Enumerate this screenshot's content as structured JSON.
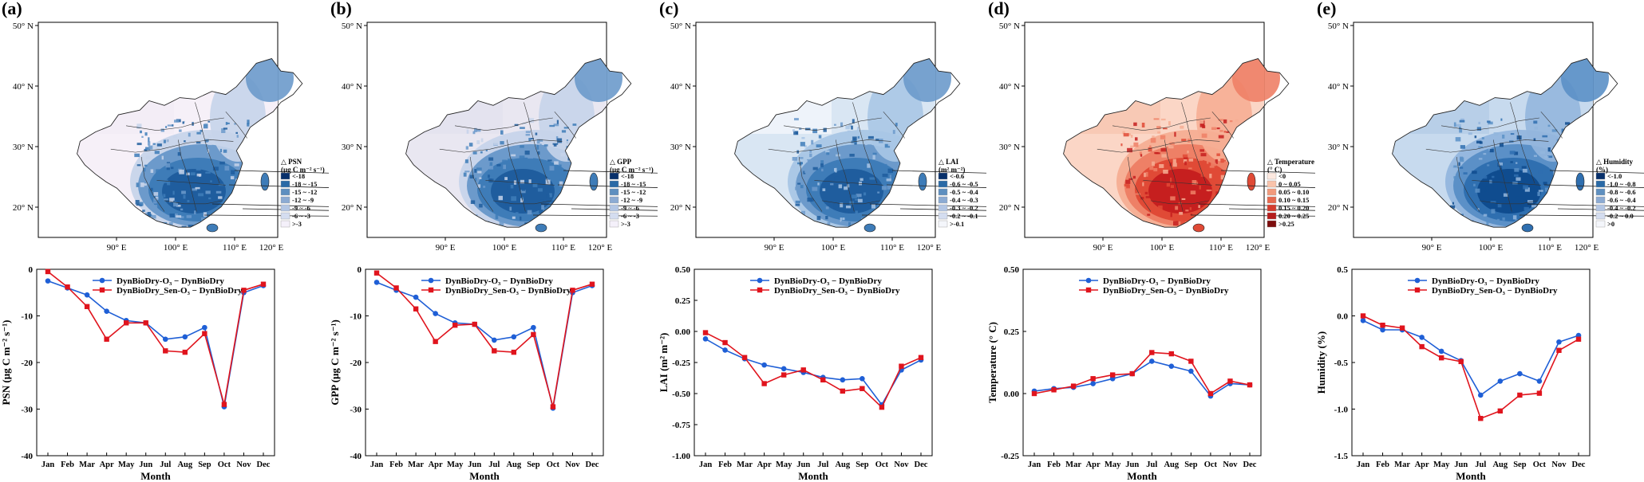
{
  "months": [
    "Jan",
    "Feb",
    "Mar",
    "Apr",
    "May",
    "Jun",
    "Jul",
    "Aug",
    "Sep",
    "Oct",
    "Nov",
    "Dec"
  ],
  "month_axis_label": "Month",
  "map_lat_ticks": [
    "50° N",
    "40° N",
    "30° N",
    "20° N"
  ],
  "map_lon_ticks": [
    "90° E",
    "100° E",
    "110° E",
    "120° E"
  ],
  "colors": {
    "o3": "#1f5fd6",
    "sen": "#e0141d"
  },
  "panels": [
    {
      "label": "(a)",
      "legend_title": [
        "△ PSN",
        "(μg C m⁻² s⁻¹)"
      ],
      "legend_items": [
        "<-18",
        "-18 ~ -15",
        "-15 ~ -12",
        "-12 ~ -9",
        "-9 ~ -6",
        "-6 ~ -3",
        ">-3"
      ],
      "legend_colors": [
        "#08306b",
        "#2a6aa6",
        "#5e8fc0",
        "#8cabd3",
        "#b3c6e4",
        "#d4ddf0",
        "#f4f0fa"
      ],
      "map_palette": [
        "#f6f0f8",
        "#f3edf6",
        "#1f5d9e",
        "#3e7cb8",
        "#6c9acb",
        "#c7d4ea"
      ],
      "chart_data": {
        "type": "line",
        "categories": [
          "Jan",
          "Feb",
          "Mar",
          "Apr",
          "May",
          "Jun",
          "Jul",
          "Aug",
          "Sep",
          "Oct",
          "Nov",
          "Dec"
        ],
        "ylabel": "PSN (μg C m⁻² s⁻¹)",
        "xlabel": "Month",
        "ylim": [
          -40,
          0
        ],
        "yticks": [
          -40,
          -30,
          -20,
          -10,
          0
        ],
        "ytick_labels": [
          "-40",
          "-30",
          "-20",
          "-10",
          "0"
        ],
        "series": [
          {
            "name": "DynBioDry-O₃ − DynBioDry",
            "values": [
              -2.5,
              -4,
              -5.5,
              -9,
              -11,
              -11.5,
              -15,
              -14.5,
              -12.5,
              -29.5,
              -5,
              -3.5
            ]
          },
          {
            "name": "DynBioDry_Sen-O₃ − DynBioDry",
            "values": [
              -0.5,
              -3.8,
              -8,
              -15,
              -11.5,
              -11.5,
              -17.5,
              -17.8,
              -13.8,
              -29,
              -4.5,
              -3.2
            ]
          }
        ]
      }
    },
    {
      "label": "(b)",
      "legend_title": [
        "△ GPP",
        "(μg C m⁻² s⁻¹)"
      ],
      "legend_items": [
        "<-18",
        "-18 ~ -15",
        "-15 ~ -12",
        "-12 ~ -9",
        "-9 ~ -6",
        "-6 ~ -3",
        ">-3"
      ],
      "legend_colors": [
        "#08306b",
        "#2a6aa6",
        "#5e8fc0",
        "#8cabd3",
        "#b3c6e4",
        "#d4ddf0",
        "#f4f0fa"
      ],
      "map_palette": [
        "#e9e7f1",
        "#e4e3ef",
        "#1f5d9e",
        "#3e7cb8",
        "#6c9acb",
        "#c7d4ea"
      ],
      "chart_data": {
        "type": "line",
        "categories": [
          "Jan",
          "Feb",
          "Mar",
          "Apr",
          "May",
          "Jun",
          "Jul",
          "Aug",
          "Sep",
          "Oct",
          "Nov",
          "Dec"
        ],
        "ylabel": "GPP (μg C m⁻² s⁻¹)",
        "xlabel": "Month",
        "ylim": [
          -40,
          0
        ],
        "yticks": [
          -40,
          -30,
          -20,
          -10,
          0
        ],
        "ytick_labels": [
          "-40",
          "-30",
          "-20",
          "-10",
          "0"
        ],
        "series": [
          {
            "name": "DynBioDry-O₃ − DynBioDry",
            "values": [
              -2.8,
              -4.5,
              -6,
              -9.5,
              -11.5,
              -11.8,
              -15.2,
              -14.5,
              -12.5,
              -29.8,
              -5,
              -3.5
            ]
          },
          {
            "name": "DynBioDry_Sen-O₃ − DynBioDry",
            "values": [
              -0.8,
              -4,
              -8.5,
              -15.5,
              -12,
              -11.8,
              -17.5,
              -17.8,
              -14,
              -29.5,
              -4.5,
              -3.2
            ]
          }
        ]
      }
    },
    {
      "label": "(c)",
      "legend_title": [
        "△ LAI",
        "(m² m⁻²)"
      ],
      "legend_items": [
        "<-0.6",
        "-0.6 ~ -0.5",
        "-0.5 ~ -0.4",
        "-0.4 ~ -0.3",
        "-0.3 ~ -0.2",
        "-0.2 ~ -0.1",
        ">-0.1"
      ],
      "legend_colors": [
        "#08306b",
        "#2a6aa6",
        "#5e8fc0",
        "#8cabd3",
        "#b3c6e4",
        "#d4ddf0",
        "#f4f6fb"
      ],
      "map_palette": [
        "#d9e6f3",
        "#eef3fa",
        "#1f5d9e",
        "#3e7cb8",
        "#6c9acb",
        "#a9c6e5"
      ],
      "chart_data": {
        "type": "line",
        "categories": [
          "Jan",
          "Feb",
          "Mar",
          "Apr",
          "May",
          "Jun",
          "Jul",
          "Aug",
          "Sep",
          "Oct",
          "Nov",
          "Dec"
        ],
        "ylabel": "LAI (m² m⁻²)",
        "xlabel": "Month",
        "ylim": [
          -1.0,
          0.5
        ],
        "yticks": [
          -1.0,
          -0.75,
          -0.5,
          -0.25,
          0,
          0.25,
          0.5
        ],
        "ytick_labels": [
          "-1.00",
          "-0.75",
          "-0.50",
          "-0.25",
          "0.00",
          "0.25",
          "0.50"
        ],
        "series": [
          {
            "name": "DynBioDry-O₃ − DynBioDry",
            "values": [
              -0.06,
              -0.15,
              -0.22,
              -0.27,
              -0.3,
              -0.33,
              -0.37,
              -0.39,
              -0.38,
              -0.59,
              -0.31,
              -0.23
            ]
          },
          {
            "name": "DynBioDry_Sen-O₃ − DynBioDry",
            "values": [
              -0.01,
              -0.09,
              -0.21,
              -0.42,
              -0.35,
              -0.31,
              -0.39,
              -0.48,
              -0.46,
              -0.61,
              -0.28,
              -0.21
            ]
          }
        ]
      }
    },
    {
      "label": "(d)",
      "legend_title": [
        "△ Temperature",
        "(° C)"
      ],
      "legend_items": [
        "<0",
        "0 ~ 0.05",
        "0.05 ~ 0.10",
        "0.10 ~ 0.15",
        "0.15 ~ 0.20",
        "0.20 ~ 0.25",
        ">0.25"
      ],
      "legend_colors": [
        "#fde9e0",
        "#f9c3ab",
        "#f29a7c",
        "#e76a50",
        "#d33c2e",
        "#b51c1c",
        "#7d0d0d"
      ],
      "map_palette": [
        "#fbd6c6",
        "#f8c9b5",
        "#c61f1f",
        "#e04a36",
        "#ee8066",
        "#f6ae94"
      ],
      "chart_data": {
        "type": "line",
        "categories": [
          "Jan",
          "Feb",
          "Mar",
          "Apr",
          "May",
          "Jun",
          "Jul",
          "Aug",
          "Sep",
          "Oct",
          "Nov",
          "Dec"
        ],
        "ylabel": "Temperature (° C)",
        "xlabel": "Month",
        "ylim": [
          -0.25,
          0.5
        ],
        "yticks": [
          -0.25,
          0,
          0.25,
          0.5
        ],
        "ytick_labels": [
          "-0.25",
          "0.00",
          "0.25",
          "0.50"
        ],
        "series": [
          {
            "name": "DynBioDry-O₃ − DynBioDry",
            "values": [
              0.01,
              0.02,
              0.025,
              0.04,
              0.06,
              0.08,
              0.13,
              0.11,
              0.09,
              -0.01,
              0.04,
              0.035
            ]
          },
          {
            "name": "DynBioDry_Sen-O₃ − DynBioDry",
            "values": [
              0.0,
              0.015,
              0.03,
              0.06,
              0.075,
              0.08,
              0.165,
              0.16,
              0.13,
              0.0,
              0.05,
              0.035
            ]
          }
        ]
      }
    },
    {
      "label": "(e)",
      "legend_title": [
        "△ Humidity",
        "(%)"
      ],
      "legend_items": [
        "<-1.0",
        "-1.0 ~ -0.8",
        "-0.8 ~ -0.6",
        "-0.6 ~ -0.4",
        "-0.4 ~ -0.2",
        "-0.2 ~ 0.0",
        ">0"
      ],
      "legend_colors": [
        "#08306b",
        "#2a6aa6",
        "#5e8fc0",
        "#8cabd3",
        "#b3c6e4",
        "#d4ddf0",
        "#f4f6fb"
      ],
      "map_palette": [
        "#c7daee",
        "#b8cfe8",
        "#0f4c8f",
        "#2f6fb0",
        "#5b90c7",
        "#93b6dd"
      ],
      "chart_data": {
        "type": "line",
        "categories": [
          "Jan",
          "Feb",
          "Mar",
          "Apr",
          "May",
          "Jun",
          "Jul",
          "Aug",
          "Sep",
          "Oct",
          "Nov",
          "Dec"
        ],
        "ylabel": "Humidity (%)",
        "xlabel": "Month",
        "ylim": [
          -1.5,
          0.5
        ],
        "yticks": [
          -1.5,
          -1.0,
          -0.5,
          0,
          0.5
        ],
        "ytick_labels": [
          "-1.5",
          "-1.0",
          "-0.5",
          "0.0",
          "0.5"
        ],
        "series": [
          {
            "name": "DynBioDry-O₃ − DynBioDry",
            "values": [
              -0.05,
              -0.15,
              -0.15,
              -0.23,
              -0.38,
              -0.48,
              -0.85,
              -0.7,
              -0.62,
              -0.7,
              -0.28,
              -0.21
            ]
          },
          {
            "name": "DynBioDry_Sen-O₃ − DynBioDry",
            "values": [
              0.0,
              -0.1,
              -0.13,
              -0.33,
              -0.45,
              -0.49,
              -1.1,
              -1.02,
              -0.85,
              -0.83,
              -0.37,
              -0.25
            ]
          }
        ]
      }
    }
  ]
}
